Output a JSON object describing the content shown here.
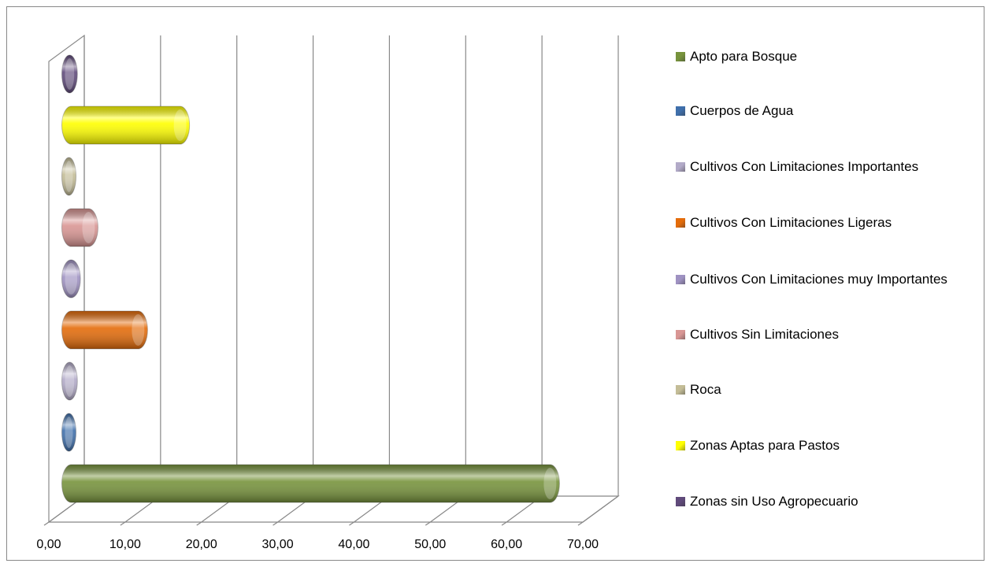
{
  "chart_data": {
    "type": "bar3d",
    "series": [
      {
        "name": "Apto para Bosque",
        "color": "#77933c",
        "values": [
          64
        ]
      },
      {
        "name": "Cuerpos de Agua",
        "color": "#3f6fab",
        "values": [
          0.4
        ]
      },
      {
        "name": "Cultivos Con Limitaciones Importantes",
        "color": "#b2aac8",
        "values": [
          0.8
        ]
      },
      {
        "name": "Cultivos Con Limitaciones Ligeras",
        "color": "#e46c0a",
        "values": [
          10
        ]
      },
      {
        "name": "Cultivos Con Limitaciones muy Importantes",
        "color": "#9f92c2",
        "values": [
          1.2
        ]
      },
      {
        "name": "Cultivos Sin Limitaciones",
        "color": "#d99694",
        "values": [
          3.5
        ]
      },
      {
        "name": "Roca",
        "color": "#c4bd97",
        "values": [
          0.2
        ]
      },
      {
        "name": "Zonas Aptas para Pastos",
        "color": "#ffff00",
        "values": [
          15.5
        ]
      },
      {
        "name": "Zonas sin Uso Agropecuario",
        "color": "#604a7b",
        "values": [
          0.8
        ]
      }
    ],
    "xlim": [
      0,
      70
    ],
    "xticks": [
      {
        "value": 0,
        "label": "0,00"
      },
      {
        "value": 10,
        "label": "10,00"
      },
      {
        "value": 20,
        "label": "20,00"
      },
      {
        "value": 30,
        "label": "30,00"
      },
      {
        "value": 40,
        "label": "40,00"
      },
      {
        "value": 50,
        "label": "50,00"
      },
      {
        "value": 60,
        "label": "60,00"
      },
      {
        "value": 70,
        "label": "70,00"
      }
    ],
    "grid": true
  }
}
